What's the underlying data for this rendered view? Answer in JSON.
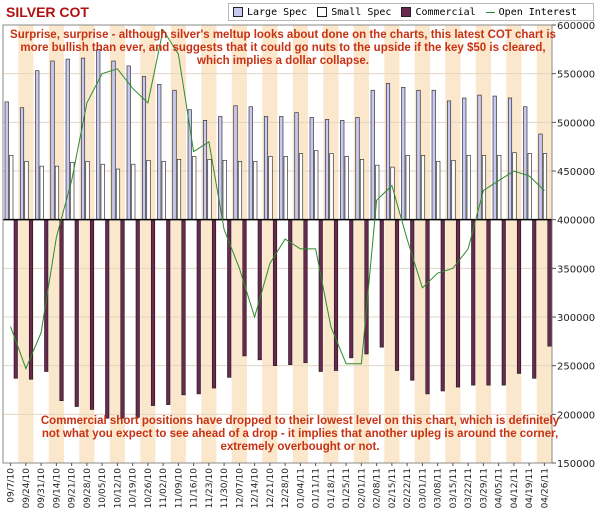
{
  "title": "SILVER COT",
  "legend": [
    {
      "label": "Large Spec",
      "color": "#c8c8f0"
    },
    {
      "label": "Small Spec",
      "color": "#ffffff"
    },
    {
      "label": "Commercial",
      "color": "#6b2850"
    },
    {
      "label": "Open Interest",
      "color": "#2e8b2e"
    }
  ],
  "annotations": {
    "top": "Surprise, surprise - although silver's meltup looks about done on the charts, this latest COT chart is more bullish than ever, and suggests that it could go nuts to the upside if the key $50 is cleared, which implies a dollar collapse.",
    "bottom": "Commercial short positions have dropped to their lowest level on this chart, which is definitely not what you expect to see ahead of a drop - it implies that another upleg is around the corner, extremely overbought or not."
  },
  "colors": {
    "large_spec": "#c8c8f0",
    "small_spec": "#ffffff",
    "commercial": "#6b2850",
    "open_interest": "#2e8b2e",
    "band": "#fbe8cc",
    "title": "#b01010",
    "annotation": "#c83214"
  },
  "chart_data": {
    "type": "bar",
    "x_tick_labels": [
      "09/7/10",
      "09/24/10",
      "09/31/10",
      "09/14/10",
      "09/21/10",
      "09/28/10",
      "10/05/10",
      "10/12/10",
      "10/19/10",
      "10/26/10",
      "11/02/10",
      "11/09/10",
      "11/16/10",
      "11/23/10",
      "11/30/10",
      "12/07/10",
      "12/14/10",
      "12/21/10",
      "12/28/10",
      "01/04/11",
      "01/11/11",
      "01/18/11",
      "01/25/11",
      "02/01/11",
      "02/08/11",
      "02/15/11",
      "02/22/11",
      "03/01/11",
      "03/08/11",
      "03/15/11",
      "03/22/11",
      "03/29/11",
      "04/05/11",
      "04/12/11",
      "04/19/11",
      "04/26/11"
    ],
    "right_axis": {
      "min": 150000,
      "max": 600000,
      "ticks": [
        150000,
        200000,
        250000,
        300000,
        350000,
        400000,
        450000,
        500000,
        550000,
        600000
      ]
    },
    "tick_labels_right": [
      "150000",
      "200000",
      "250000",
      "300000",
      "350000",
      "400000",
      "450000",
      "500000",
      "550000",
      "600000"
    ],
    "bar_baseline": 400000,
    "series": [
      {
        "name": "Large Spec",
        "values": [
          521000,
          515000,
          553000,
          563000,
          565000,
          566000,
          575000,
          563000,
          558000,
          547000,
          539000,
          533000,
          513000,
          502000,
          506000,
          517000,
          516000,
          506000,
          506000,
          510000,
          505000,
          503000,
          502000,
          505000,
          533000,
          540000,
          536000,
          533000,
          533000,
          522000,
          525000,
          528000,
          527000,
          525000,
          516000,
          488000
        ]
      },
      {
        "name": "Small Spec",
        "values": [
          466000,
          460000,
          455000,
          455000,
          459000,
          460000,
          457000,
          452000,
          457000,
          461000,
          460000,
          462000,
          465000,
          462000,
          461000,
          460000,
          460000,
          465000,
          465000,
          468000,
          471000,
          468000,
          465000,
          462000,
          456000,
          454000,
          466000,
          466000,
          460000,
          461000,
          466000,
          466000,
          466000,
          469000,
          468000,
          468000
        ]
      },
      {
        "name": "Commercial",
        "values": [
          237000,
          236000,
          244000,
          214000,
          208000,
          205000,
          196000,
          196000,
          197000,
          209000,
          210000,
          220000,
          221000,
          227000,
          238000,
          260000,
          256000,
          250000,
          251000,
          253000,
          244000,
          245000,
          258000,
          262000,
          269000,
          245000,
          235000,
          221000,
          224000,
          228000,
          230000,
          230000,
          230000,
          242000,
          237000,
          270000
        ]
      },
      {
        "name": "Open Interest",
        "values": [
          290000,
          247000,
          284000,
          382000,
          440000,
          520000,
          550000,
          555000,
          535000,
          520000,
          595000,
          570000,
          470000,
          480000,
          390000,
          350000,
          300000,
          355000,
          380000,
          370000,
          370000,
          290000,
          252000,
          252000,
          420000,
          435000,
          380000,
          330000,
          345000,
          350000,
          370000,
          430000,
          440000,
          450000,
          445000,
          430000
        ]
      }
    ]
  }
}
